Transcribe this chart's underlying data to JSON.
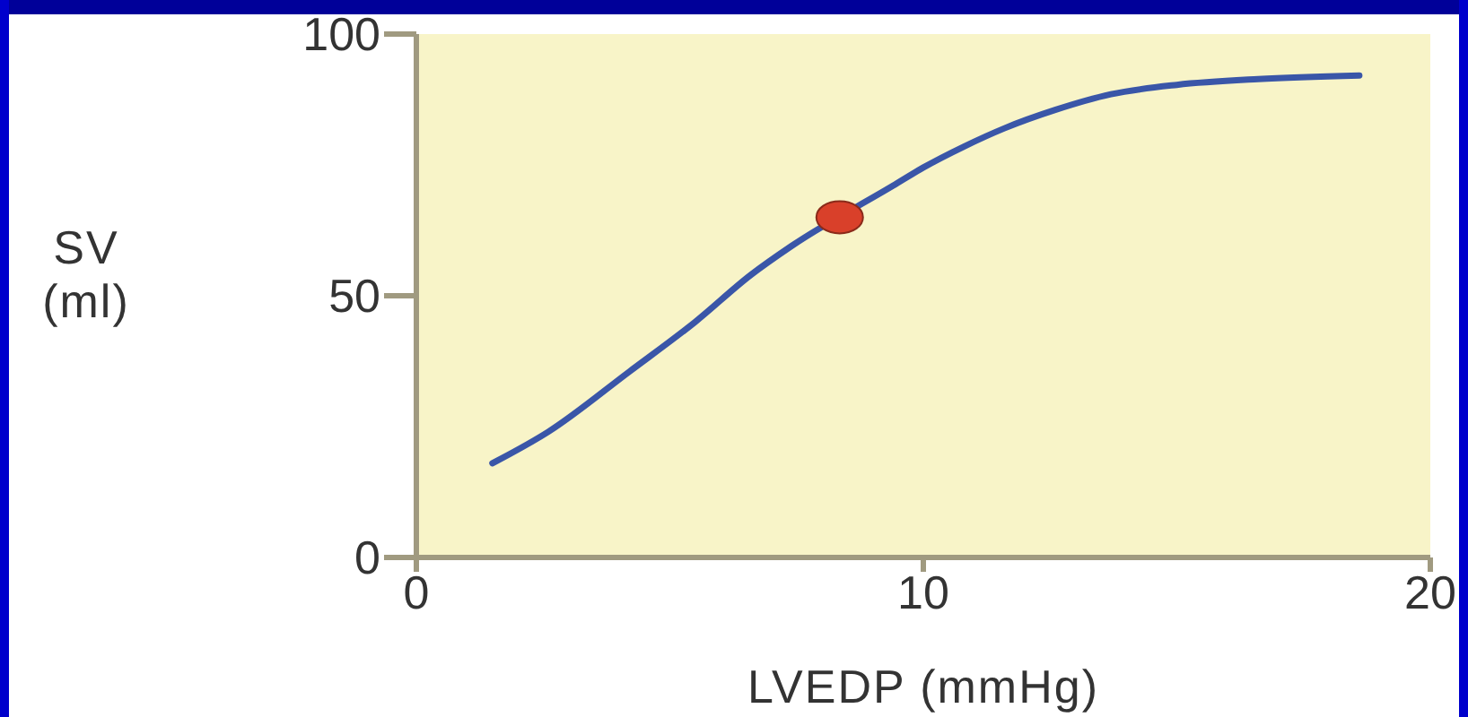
{
  "chart_data": {
    "type": "line",
    "xlabel": "LVEDP (mmHg)",
    "ylabel": "SV (ml)",
    "xlim": [
      0,
      20
    ],
    "ylim": [
      0,
      100
    ],
    "xticks": [
      0,
      10,
      20
    ],
    "yticks": [
      0,
      50,
      100
    ],
    "series": [
      {
        "color": "#3a56a8",
        "x": [
          1.5,
          2.6,
          4.2,
          5.5,
          6.6,
          7.4,
          9.4,
          10.0,
          10.8,
          11.6,
          12.6,
          13.7,
          15.0,
          16.6,
          18.6
        ],
        "values": [
          18,
          24,
          35.5,
          45,
          54,
          59.5,
          71,
          74.5,
          78.5,
          82,
          85.5,
          88.5,
          90.3,
          91.4,
          92.1
        ]
      },
      {
        "type": "scatter",
        "color": "#d9402a",
        "marker": "circle",
        "x": [
          8.35
        ],
        "values": [
          65
        ]
      }
    ]
  }
}
